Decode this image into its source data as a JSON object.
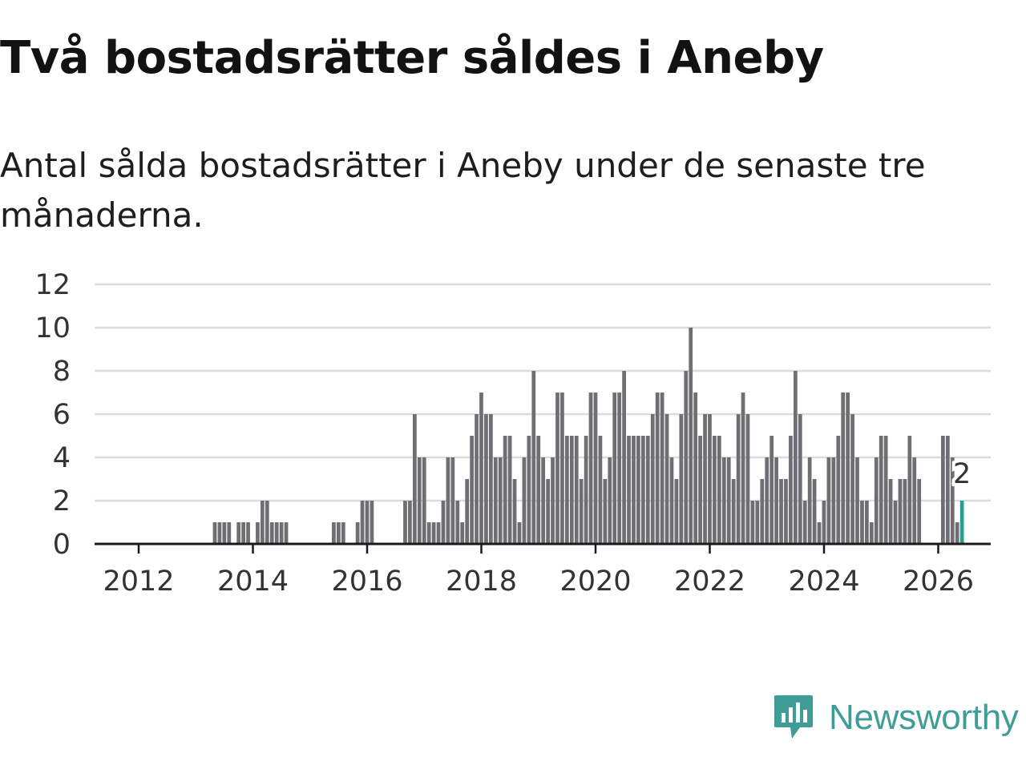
{
  "title": "Två bostadsrätter såldes i Aneby",
  "subtitle": "Antal sålda bostadsrätter i Aneby under de senaste tre månaderna.",
  "logo": {
    "text": "Newsworthy",
    "icon": "newsworthy-chart-icon",
    "color": "#3f9d97"
  },
  "colors": {
    "bar": "#6e6e73",
    "highlight": "#2a9d8f",
    "grid": "#dcdcdc",
    "axis": "#1a1a1a"
  },
  "chart_data": {
    "type": "bar",
    "title": "Två bostadsrätter såldes i Aneby",
    "xlabel": "",
    "ylabel": "",
    "ylim": [
      0,
      12
    ],
    "yticks": [
      0,
      2,
      4,
      6,
      8,
      10,
      12
    ],
    "xticks": [
      2012,
      2014,
      2016,
      2018,
      2020,
      2022,
      2024,
      2026
    ],
    "x_start": 2011.25,
    "x_step": 0.08333,
    "grid": true,
    "series": [
      {
        "name": "Antal sålda bostadsrätter",
        "values": [
          0,
          0,
          0,
          0,
          0,
          0,
          0,
          0,
          0,
          0,
          0,
          0,
          0,
          0,
          0,
          0,
          0,
          0,
          0,
          0,
          0,
          0,
          0,
          0,
          0,
          1,
          1,
          1,
          1,
          0,
          1,
          1,
          1,
          0,
          1,
          2,
          2,
          1,
          1,
          1,
          1,
          0,
          0,
          0,
          0,
          0,
          0,
          0,
          0,
          0,
          1,
          1,
          1,
          0,
          0,
          1,
          2,
          2,
          2,
          0,
          0,
          0,
          0,
          0,
          0,
          2,
          2,
          6,
          4,
          4,
          1,
          1,
          1,
          2,
          4,
          4,
          2,
          1,
          3,
          5,
          6,
          7,
          6,
          6,
          4,
          4,
          5,
          5,
          3,
          1,
          4,
          5,
          8,
          5,
          4,
          3,
          4,
          7,
          7,
          5,
          5,
          5,
          3,
          5,
          7,
          7,
          5,
          3,
          4,
          7,
          7,
          8,
          5,
          5,
          5,
          5,
          5,
          6,
          7,
          7,
          6,
          4,
          3,
          6,
          8,
          10,
          7,
          5,
          6,
          6,
          5,
          5,
          4,
          4,
          3,
          6,
          7,
          6,
          2,
          2,
          3,
          4,
          5,
          4,
          3,
          3,
          5,
          8,
          6,
          2,
          4,
          3,
          1,
          2,
          4,
          4,
          5,
          7,
          7,
          6,
          4,
          2,
          2,
          1,
          4,
          5,
          5,
          3,
          2,
          3,
          3,
          5,
          4,
          3,
          0,
          0,
          0,
          0,
          5,
          5,
          4,
          1,
          2
        ]
      }
    ],
    "highlight": {
      "index": 182,
      "label": "2"
    }
  }
}
